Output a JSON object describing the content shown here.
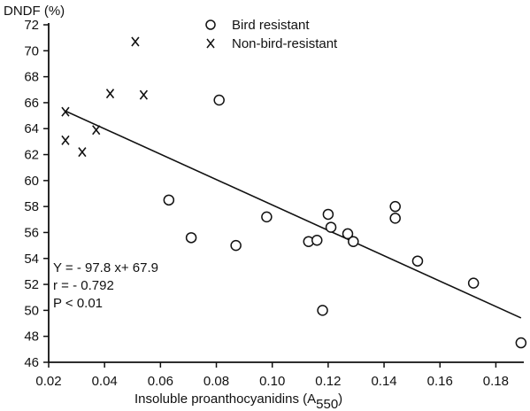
{
  "chart_data": {
    "type": "scatter",
    "ylabel": "DNDF (%)",
    "xlabel_main": "Insoluble proanthocyanidins (A",
    "xlabel_sub": "550",
    "xlabel_close": ")",
    "xlim": [
      0.02,
      0.19
    ],
    "ylim": [
      46,
      72
    ],
    "x_ticks": [
      0.02,
      0.04,
      0.06,
      0.08,
      0.1,
      0.12,
      0.14,
      0.16,
      0.18
    ],
    "x_tick_labels": [
      "0.02",
      "0.04",
      "0.06",
      "0.08",
      "0.10",
      "0.12",
      "0.14",
      "0.16",
      "0.18"
    ],
    "y_ticks": [
      46,
      48,
      50,
      52,
      54,
      56,
      58,
      60,
      62,
      64,
      66,
      68,
      70,
      72
    ],
    "y_tick_labels": [
      "46",
      "48",
      "50",
      "52",
      "54",
      "56",
      "58",
      "60",
      "62",
      "64",
      "66",
      "68",
      "70",
      "72"
    ],
    "legend_position": "top-center",
    "grid": false,
    "series": [
      {
        "name": "Bird resistant",
        "marker": "circle",
        "points": [
          [
            0.063,
            58.5
          ],
          [
            0.071,
            55.6
          ],
          [
            0.081,
            66.2
          ],
          [
            0.087,
            55.0
          ],
          [
            0.098,
            57.2
          ],
          [
            0.113,
            55.3
          ],
          [
            0.116,
            55.4
          ],
          [
            0.118,
            50.0
          ],
          [
            0.12,
            57.4
          ],
          [
            0.121,
            56.4
          ],
          [
            0.127,
            55.9
          ],
          [
            0.129,
            55.3
          ],
          [
            0.144,
            58.0
          ],
          [
            0.144,
            57.1
          ],
          [
            0.152,
            53.8
          ],
          [
            0.172,
            52.1
          ],
          [
            0.189,
            47.5
          ]
        ]
      },
      {
        "name": "Non-bird-resistant",
        "marker": "x",
        "points": [
          [
            0.026,
            65.3
          ],
          [
            0.026,
            63.1
          ],
          [
            0.032,
            62.2
          ],
          [
            0.037,
            63.9
          ],
          [
            0.042,
            66.7
          ],
          [
            0.051,
            70.7
          ],
          [
            0.054,
            66.6
          ]
        ]
      }
    ],
    "regression": {
      "slope": -97.8,
      "intercept": 67.9,
      "x_range": [
        0.026,
        0.189
      ]
    },
    "annotations": [
      "Y = - 97.8 x+ 67.9",
      "r = - 0.792",
      "P < 0.01"
    ],
    "colors": {
      "ink": "#111111",
      "background": "#ffffff"
    }
  }
}
